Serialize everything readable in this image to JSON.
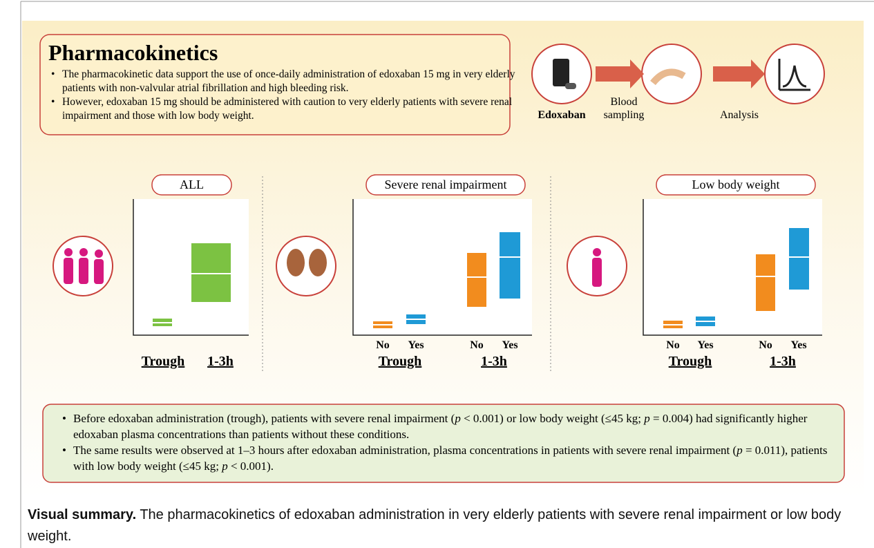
{
  "header": {
    "title": "Pharmacokinetics",
    "bullets": [
      "The pharmacokinetic data support the use of once-daily administration of edoxaban 15 mg in very elderly patients with non-valvular atrial fibrillation and high bleeding risk.",
      "However, edoxaban 15 mg should be administered with caution to very elderly patients with severe renal impairment and those with low body weight."
    ]
  },
  "flow": {
    "drug": "Edoxaban",
    "step1": "Blood sampling",
    "step2": "Analysis"
  },
  "panels": [
    {
      "label": "ALL",
      "x_labels": [
        "Trough",
        "1-3h"
      ]
    },
    {
      "label": "Severe renal impairment",
      "groups": [
        "No",
        "Yes",
        "No",
        "Yes"
      ],
      "x_labels": [
        "Trough",
        "1-3h"
      ]
    },
    {
      "label": "Low body weight",
      "groups": [
        "No",
        "Yes",
        "No",
        "Yes"
      ],
      "x_labels": [
        "Trough",
        "1-3h"
      ]
    }
  ],
  "findings": [
    [
      "Before edoxaban administration (trough), patients with severe renal impairment (",
      "p",
      " < 0.001) or low body weight (≤45 kg; ",
      "p",
      " = 0.004) had significantly higher edoxaban plasma concentrations than patients without these conditions."
    ],
    [
      "The same results were observed at 1–3 hours after edoxaban administration, plasma concentrations in patients with severe renal impairment (",
      "p",
      " = 0.011), patients with low body weight (≤45 kg; ",
      "p",
      " < 0.001)."
    ]
  ],
  "caption": {
    "bold": "Visual summary.",
    "text": " The pharmacokinetics of edoxaban administration in very elderly patients with severe renal impairment or low body weight."
  }
}
